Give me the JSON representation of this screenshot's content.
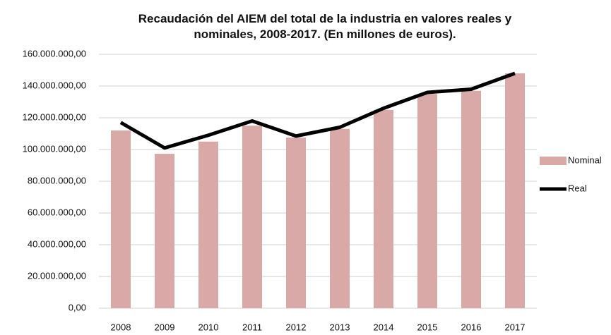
{
  "chart_data": {
    "type": "bar",
    "title": "Recaudación del AIEM del total de la industria en valores reales y nominales, 2008-2017. (En millones de euros).",
    "categories": [
      "2008",
      "2009",
      "2010",
      "2011",
      "2012",
      "2013",
      "2014",
      "2015",
      "2016",
      "2017"
    ],
    "series": [
      {
        "name": "Nominal",
        "type": "bar",
        "color": "#d9a9a7",
        "values": [
          112000000,
          97300000,
          105000000,
          115000000,
          107500000,
          113000000,
          125000000,
          135000000,
          137000000,
          148000000
        ]
      },
      {
        "name": "Real",
        "type": "line",
        "color": "#000000",
        "values": [
          117000000,
          101000000,
          109000000,
          118000000,
          108500000,
          114000000,
          126000000,
          136000000,
          138000000,
          148000000
        ]
      }
    ],
    "ylim": [
      0,
      160000000
    ],
    "yticks": [
      {
        "value": 0,
        "label": "0,00"
      },
      {
        "value": 20000000,
        "label": "20.000.000,00"
      },
      {
        "value": 40000000,
        "label": "40.000.000,00"
      },
      {
        "value": 60000000,
        "label": "60.000.000,00"
      },
      {
        "value": 80000000,
        "label": "80.000.000,00"
      },
      {
        "value": 100000000,
        "label": "100.000.000,00"
      },
      {
        "value": 120000000,
        "label": "120.000.000,00"
      },
      {
        "value": 140000000,
        "label": "140.000.000,00"
      },
      {
        "value": 160000000,
        "label": "160.000.000,00"
      }
    ],
    "grid": true,
    "legend": "right"
  }
}
